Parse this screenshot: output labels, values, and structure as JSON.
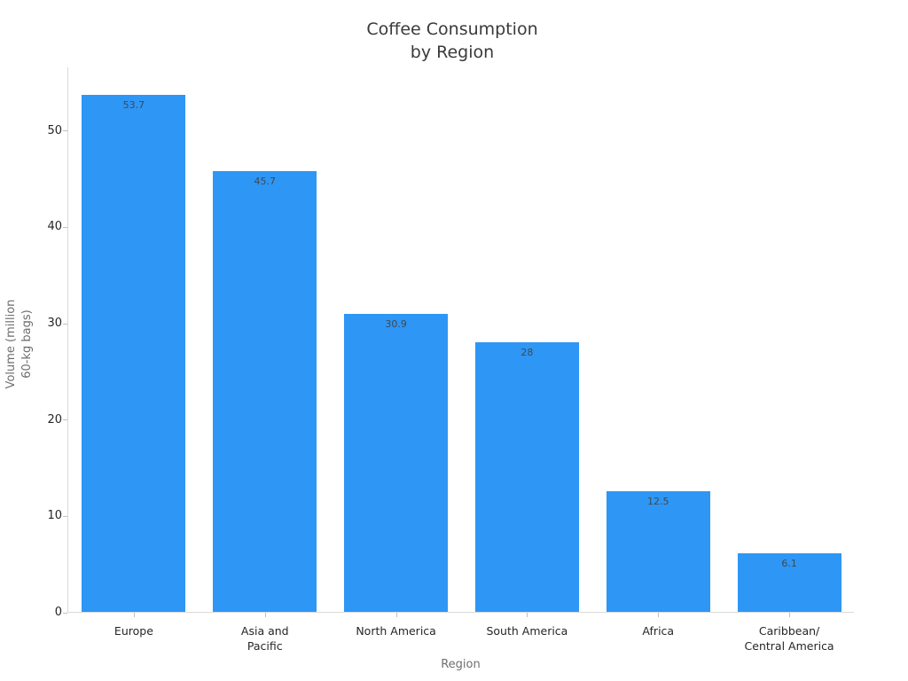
{
  "chart_data": {
    "type": "bar",
    "title": "Coffee Consumption\nby Region",
    "title_lines": [
      "Coffee Consumption",
      "by Region"
    ],
    "xlabel": "Region",
    "ylabel": "Volume (million\n60-kg bags)",
    "ylabel_lines": [
      "Volume (million",
      "60-kg bags)"
    ],
    "categories": [
      "Europe",
      "Asia and\nPacific",
      "North America",
      "South America",
      "Africa",
      "Caribbean/\nCentral America"
    ],
    "values": [
      53.7,
      45.7,
      30.9,
      28,
      12.5,
      6.1
    ],
    "value_labels": [
      "53.7",
      "45.7",
      "30.9",
      "28",
      "12.5",
      "6.1"
    ],
    "yticks": [
      0,
      10,
      20,
      30,
      40,
      50
    ],
    "ylim": [
      0,
      56.6
    ],
    "grid": false,
    "legend_position": "none",
    "bar_color": "#2e96f5",
    "value_label_color": "#3e4a54",
    "axis_line_color": "#d9d9d9",
    "tick_label_color": "#262626",
    "axis_title_color": "#6e6e6e",
    "title_color": "#3a3a3a",
    "background_color": "#ffffff"
  }
}
